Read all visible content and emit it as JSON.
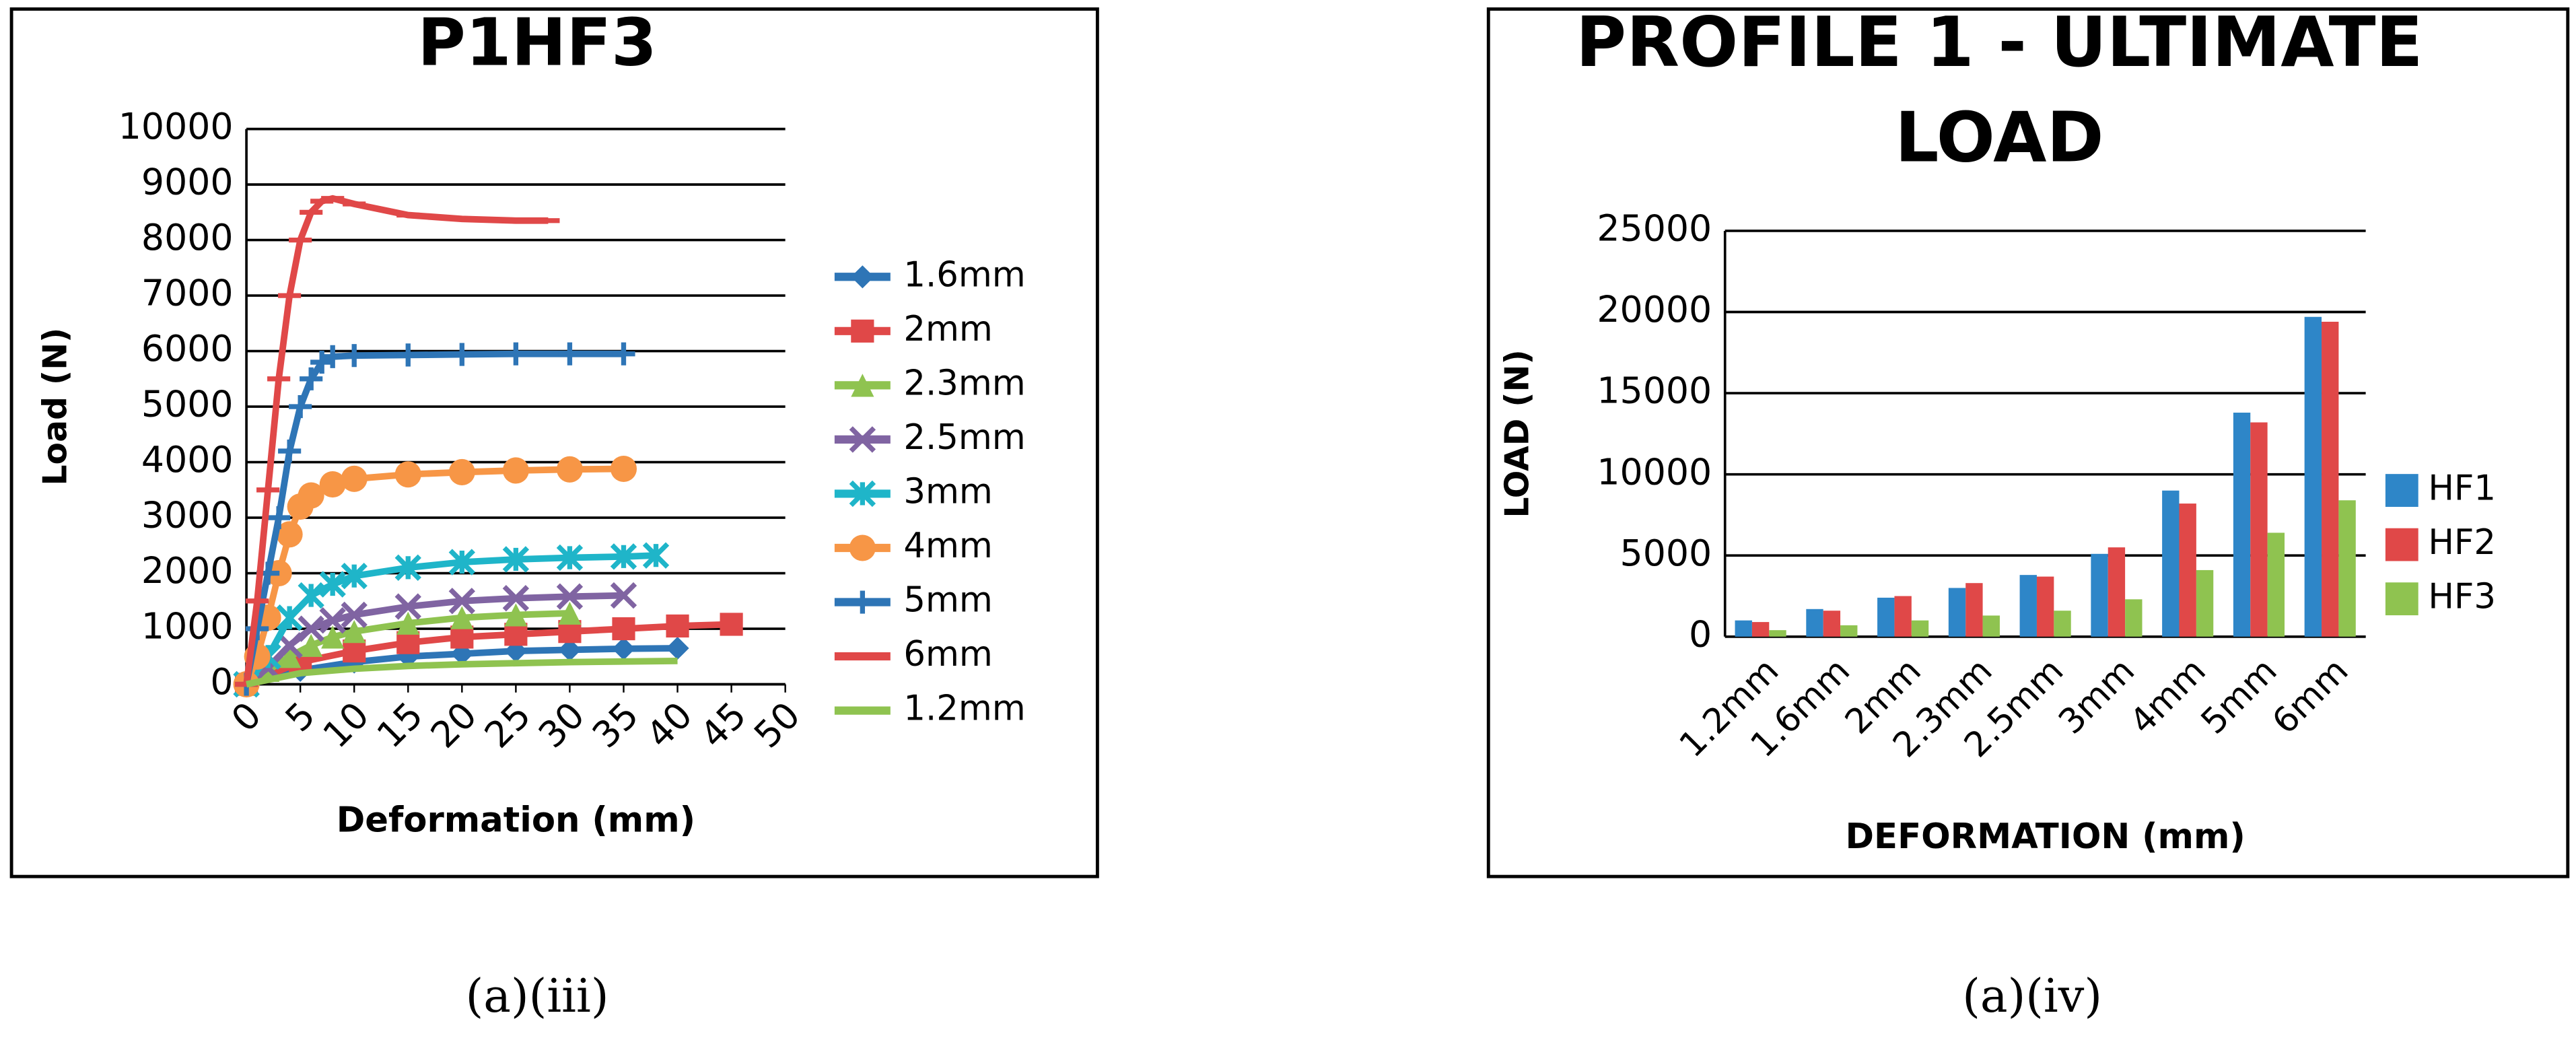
{
  "chart_data": [
    {
      "type": "line",
      "title": "P1HF3",
      "x_label": "Deformation (mm)",
      "y_label": "Load (N)",
      "caption": "(a)(iii)",
      "xlim": [
        0,
        50
      ],
      "xticks": [
        0,
        5,
        10,
        15,
        20,
        25,
        30,
        35,
        40,
        45,
        50
      ],
      "ylim": [
        0,
        10000
      ],
      "yticks": [
        0,
        1000,
        2000,
        3000,
        4000,
        5000,
        6000,
        7000,
        8000,
        9000,
        10000
      ],
      "grid": true,
      "legend": "right",
      "series": [
        {
          "name": "1.6mm",
          "color": "#2e75b6",
          "marker": "diamond",
          "x": [
            0,
            5,
            10,
            15,
            20,
            25,
            30,
            35,
            40
          ],
          "values": [
            0,
            250,
            400,
            500,
            550,
            600,
            620,
            640,
            650
          ]
        },
        {
          "name": "2mm",
          "color": "#e04848",
          "marker": "square",
          "x": [
            0,
            5,
            10,
            15,
            20,
            25,
            30,
            35,
            40,
            45
          ],
          "values": [
            0,
            400,
            600,
            750,
            850,
            900,
            950,
            1000,
            1050,
            1080
          ]
        },
        {
          "name": "2.3mm",
          "color": "#8fc350",
          "marker": "triangle",
          "x": [
            0,
            2,
            4,
            6,
            8,
            10,
            15,
            20,
            25,
            30
          ],
          "values": [
            0,
            250,
            500,
            700,
            850,
            950,
            1100,
            1200,
            1250,
            1280
          ]
        },
        {
          "name": "2.5mm",
          "color": "#8064a2",
          "marker": "x",
          "x": [
            0,
            2,
            4,
            6,
            8,
            10,
            15,
            20,
            25,
            30,
            35
          ],
          "values": [
            0,
            300,
            700,
            1000,
            1150,
            1250,
            1400,
            1500,
            1550,
            1580,
            1600
          ]
        },
        {
          "name": "3mm",
          "color": "#1fb5c9",
          "marker": "star",
          "x": [
            0,
            2,
            4,
            6,
            8,
            10,
            15,
            20,
            25,
            30,
            35,
            38
          ],
          "values": [
            0,
            500,
            1200,
            1600,
            1800,
            1950,
            2100,
            2200,
            2250,
            2280,
            2300,
            2320
          ]
        },
        {
          "name": "4mm",
          "color": "#f79646",
          "marker": "circle",
          "x": [
            0,
            1,
            2,
            3,
            4,
            5,
            6,
            8,
            10,
            15,
            20,
            25,
            30,
            35
          ],
          "values": [
            0,
            500,
            1200,
            2000,
            2700,
            3200,
            3400,
            3600,
            3700,
            3780,
            3820,
            3850,
            3870,
            3880
          ]
        },
        {
          "name": "5mm",
          "color": "#2e75b6",
          "marker": "plus",
          "x": [
            0,
            1,
            2,
            3,
            4,
            5,
            6,
            7,
            8,
            10,
            15,
            20,
            25,
            30,
            35
          ],
          "values": [
            0,
            1000,
            2000,
            3000,
            4200,
            5000,
            5500,
            5800,
            5900,
            5920,
            5930,
            5940,
            5950,
            5950,
            5950
          ]
        },
        {
          "name": "6mm",
          "color": "#e04848",
          "marker": "dash",
          "x": [
            0,
            1,
            2,
            3,
            4,
            5,
            6,
            7,
            8,
            10,
            15,
            20,
            25,
            28
          ],
          "values": [
            0,
            1500,
            3500,
            5500,
            7000,
            8000,
            8500,
            8700,
            8750,
            8650,
            8450,
            8380,
            8350,
            8350
          ]
        },
        {
          "name": "1.2mm",
          "color": "#8fc350",
          "marker": "none",
          "x": [
            0,
            5,
            10,
            15,
            20,
            25,
            30,
            35,
            40
          ],
          "values": [
            0,
            200,
            280,
            330,
            360,
            380,
            400,
            410,
            420
          ]
        }
      ]
    },
    {
      "type": "bar",
      "title": [
        "PROFILE 1 - ULTIMATE",
        "LOAD"
      ],
      "x_label": "DEFORMATION (mm)",
      "y_label": "LOAD (N)",
      "caption": "(a)(iv)",
      "categories": [
        "1.2mm",
        "1.6mm",
        "2mm",
        "2.3mm",
        "2.5mm",
        "3mm",
        "4mm",
        "5mm",
        "6mm"
      ],
      "ylim": [
        0,
        25000
      ],
      "yticks": [
        0,
        5000,
        10000,
        15000,
        20000,
        25000
      ],
      "grid": true,
      "legend": "right",
      "series": [
        {
          "name": "HF1",
          "color": "#2e86c8",
          "values": [
            1000,
            1700,
            2400,
            3000,
            3800,
            5100,
            9000,
            13800,
            19700
          ]
        },
        {
          "name": "HF2",
          "color": "#e04848",
          "values": [
            900,
            1600,
            2500,
            3300,
            3700,
            5500,
            8200,
            13200,
            19400
          ]
        },
        {
          "name": "HF3",
          "color": "#8fc350",
          "values": [
            400,
            700,
            1000,
            1300,
            1600,
            2300,
            4100,
            6400,
            8400
          ]
        }
      ]
    }
  ]
}
